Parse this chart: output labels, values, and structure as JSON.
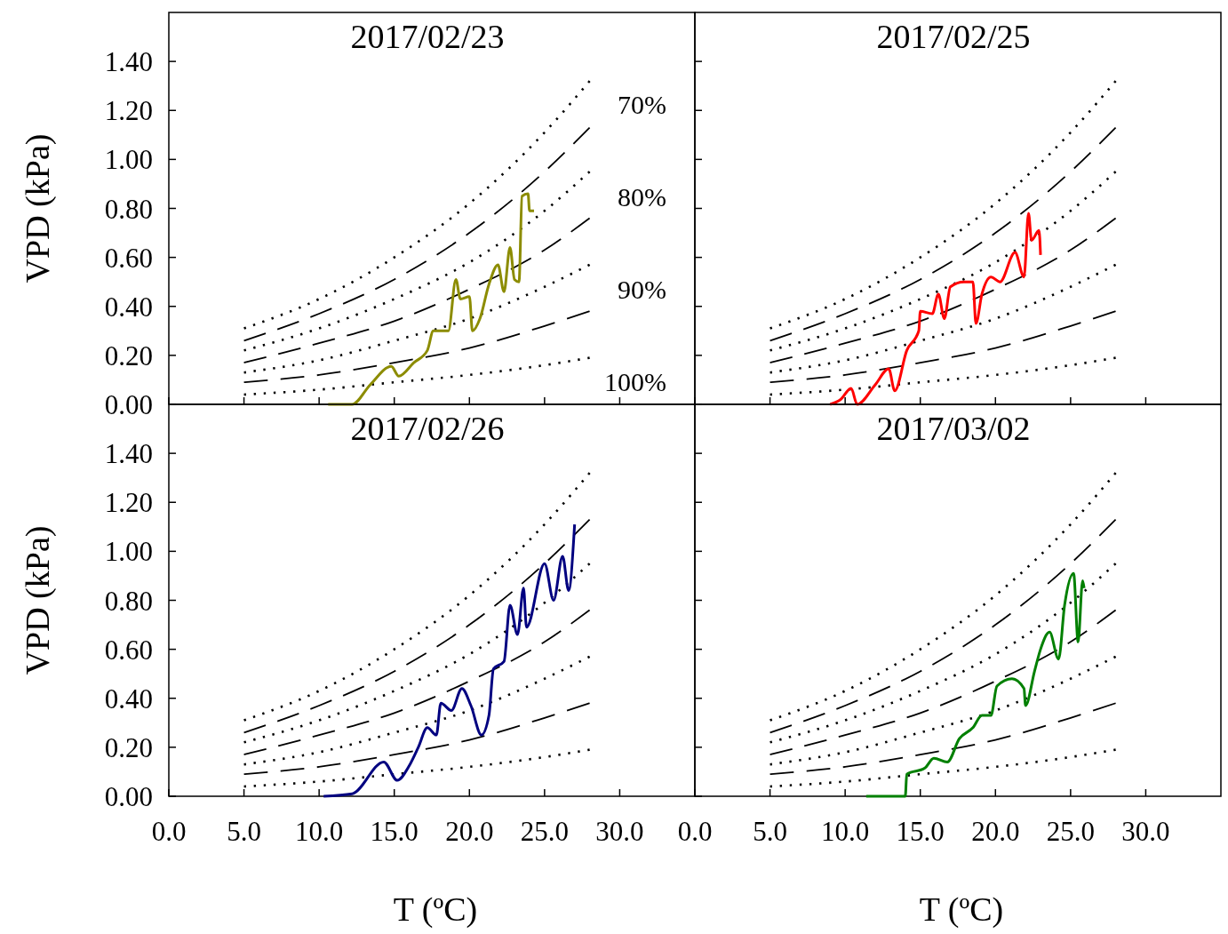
{
  "chart_data": [
    {
      "type": "line",
      "title": "2017/02/23",
      "ylabel": "VPD (kPa)",
      "xlim": [
        0,
        35
      ],
      "ylim": [
        0,
        1.6
      ],
      "tick_labels": "y",
      "xticks": [
        {
          "value": 0,
          "label": null
        },
        {
          "value": 5,
          "label": null
        },
        {
          "value": 10,
          "label": null
        },
        {
          "value": 15,
          "label": null
        },
        {
          "value": 20,
          "label": null
        },
        {
          "value": 25,
          "label": null
        },
        {
          "value": 30,
          "label": null
        }
      ],
      "yticks": [
        {
          "value": 0,
          "label": "0.00"
        },
        {
          "value": 0.2,
          "label": "0.20"
        },
        {
          "value": 0.4,
          "label": "0.40"
        },
        {
          "value": 0.6,
          "label": "0.60"
        },
        {
          "value": 0.8,
          "label": "0.80"
        },
        {
          "value": 1,
          "label": "1.00"
        },
        {
          "value": 1.2,
          "label": "1.20"
        },
        {
          "value": 1.4,
          "label": "1.40"
        }
      ],
      "annotations": [
        "70%",
        "80%",
        "90%",
        "100%"
      ],
      "series": [
        {
          "color": "#000000",
          "line_style": "dotted",
          "x": [
            5,
            10,
            15,
            20,
            25,
            28
          ],
          "values": [
            0.31,
            0.43,
            0.6,
            0.82,
            1.11,
            1.32
          ]
        },
        {
          "color": "#000000",
          "line_style": "dashed",
          "x": [
            5,
            10,
            15,
            20,
            25,
            28
          ],
          "values": [
            0.26,
            0.37,
            0.51,
            0.7,
            0.95,
            1.13
          ]
        },
        {
          "color": "#000000",
          "line_style": "dotted",
          "x": [
            5,
            10,
            15,
            20,
            25,
            28
          ],
          "values": [
            0.22,
            0.31,
            0.43,
            0.58,
            0.79,
            0.95
          ]
        },
        {
          "color": "#000000",
          "line_style": "dashed",
          "x": [
            5,
            10,
            15,
            20,
            25,
            28
          ],
          "values": [
            0.17,
            0.25,
            0.34,
            0.47,
            0.63,
            0.76
          ]
        },
        {
          "color": "#000000",
          "line_style": "dotted",
          "x": [
            5,
            10,
            15,
            20,
            25,
            28
          ],
          "values": [
            0.13,
            0.18,
            0.26,
            0.35,
            0.48,
            0.57
          ]
        },
        {
          "color": "#000000",
          "line_style": "dashed",
          "x": [
            5,
            10,
            15,
            20,
            25,
            28
          ],
          "values": [
            0.09,
            0.12,
            0.17,
            0.23,
            0.32,
            0.38
          ]
        },
        {
          "color": "#000000",
          "line_style": "dotted",
          "x": [
            5,
            10,
            15,
            20,
            25,
            28
          ],
          "values": [
            0.04,
            0.06,
            0.09,
            0.12,
            0.16,
            0.19
          ]
        },
        {
          "color": "#8c8c00",
          "x": [
            10.6,
            12.2,
            13.4,
            14.8,
            15.3,
            16.3,
            17.2,
            17.6,
            18.6,
            19.1,
            19.4,
            20.0,
            20.2,
            20.7,
            21.3,
            21.9,
            22.3,
            22.7,
            23.0,
            23.3,
            23.5,
            23.9,
            24.0,
            24.3
          ],
          "values": [
            0,
            0,
            0.08,
            0.155,
            0.115,
            0.17,
            0.22,
            0.3,
            0.3,
            0.51,
            0.43,
            0.44,
            0.3,
            0.35,
            0.49,
            0.57,
            0.46,
            0.64,
            0.51,
            0.5,
            0.85,
            0.86,
            0.79,
            0.79
          ]
        }
      ]
    },
    {
      "type": "line",
      "title": "2017/02/25",
      "xlim": [
        0,
        35
      ],
      "ylim": [
        0,
        1.6
      ],
      "tick_labels": false,
      "xticks": [
        {
          "value": 0,
          "label": null
        },
        {
          "value": 5,
          "label": null
        },
        {
          "value": 10,
          "label": null
        },
        {
          "value": 15,
          "label": null
        },
        {
          "value": 20,
          "label": null
        },
        {
          "value": 25,
          "label": null
        },
        {
          "value": 30,
          "label": null
        }
      ],
      "yticks": [
        {
          "value": 0,
          "label": null
        },
        {
          "value": 0.2,
          "label": null
        },
        {
          "value": 0.4,
          "label": null
        },
        {
          "value": 0.6,
          "label": null
        },
        {
          "value": 0.8,
          "label": null
        },
        {
          "value": 1,
          "label": null
        },
        {
          "value": 1.2,
          "label": null
        },
        {
          "value": 1.4,
          "label": null
        }
      ],
      "series": [
        {
          "color": "#000000",
          "line_style": "dotted",
          "x": [
            5,
            10,
            15,
            20,
            25,
            28
          ],
          "values": [
            0.31,
            0.43,
            0.6,
            0.82,
            1.11,
            1.32
          ]
        },
        {
          "color": "#000000",
          "line_style": "dashed",
          "x": [
            5,
            10,
            15,
            20,
            25,
            28
          ],
          "values": [
            0.26,
            0.37,
            0.51,
            0.7,
            0.95,
            1.13
          ]
        },
        {
          "color": "#000000",
          "line_style": "dotted",
          "x": [
            5,
            10,
            15,
            20,
            25,
            28
          ],
          "values": [
            0.22,
            0.31,
            0.43,
            0.58,
            0.79,
            0.95
          ]
        },
        {
          "color": "#000000",
          "line_style": "dashed",
          "x": [
            5,
            10,
            15,
            20,
            25,
            28
          ],
          "values": [
            0.17,
            0.25,
            0.34,
            0.47,
            0.63,
            0.76
          ]
        },
        {
          "color": "#000000",
          "line_style": "dotted",
          "x": [
            5,
            10,
            15,
            20,
            25,
            28
          ],
          "values": [
            0.13,
            0.18,
            0.26,
            0.35,
            0.48,
            0.57
          ]
        },
        {
          "color": "#000000",
          "line_style": "dashed",
          "x": [
            5,
            10,
            15,
            20,
            25,
            28
          ],
          "values": [
            0.09,
            0.12,
            0.17,
            0.23,
            0.32,
            0.38
          ]
        },
        {
          "color": "#000000",
          "line_style": "dotted",
          "x": [
            5,
            10,
            15,
            20,
            25,
            28
          ],
          "values": [
            0.04,
            0.06,
            0.09,
            0.12,
            0.16,
            0.19
          ]
        },
        {
          "color": "#ff0000",
          "x": [
            9.0,
            9.7,
            10.4,
            10.8,
            12.0,
            12.9,
            13.3,
            14.1,
            14.9,
            15.0,
            15.8,
            16.2,
            16.6,
            17.0,
            17.9,
            18.5,
            18.7,
            19.1,
            19.7,
            20.3,
            21.3,
            21.9,
            22.2,
            22.4,
            22.9,
            23.0
          ],
          "values": [
            0,
            0.02,
            0.065,
            0,
            0.08,
            0.145,
            0.055,
            0.22,
            0.3,
            0.38,
            0.37,
            0.45,
            0.35,
            0.48,
            0.5,
            0.5,
            0.33,
            0.45,
            0.52,
            0.5,
            0.62,
            0.52,
            0.78,
            0.67,
            0.71,
            0.61
          ]
        }
      ]
    },
    {
      "type": "line",
      "title": "2017/02/26",
      "xlabel": "T (ºC)",
      "ylabel": "VPD (kPa)",
      "xlim": [
        0,
        35
      ],
      "ylim": [
        0,
        1.6
      ],
      "xticks": [
        {
          "value": 0,
          "label": "0.0"
        },
        {
          "value": 5,
          "label": "5.0"
        },
        {
          "value": 10,
          "label": "10.0"
        },
        {
          "value": 15,
          "label": "15.0"
        },
        {
          "value": 20,
          "label": "20.0"
        },
        {
          "value": 25,
          "label": "25.0"
        },
        {
          "value": 30,
          "label": "30.0"
        }
      ],
      "yticks": [
        {
          "value": 0,
          "label": "0.00"
        },
        {
          "value": 0.2,
          "label": "0.20"
        },
        {
          "value": 0.4,
          "label": "0.40"
        },
        {
          "value": 0.6,
          "label": "0.60"
        },
        {
          "value": 0.8,
          "label": "0.80"
        },
        {
          "value": 1,
          "label": "1.00"
        },
        {
          "value": 1.2,
          "label": "1.20"
        },
        {
          "value": 1.4,
          "label": "1.40"
        }
      ],
      "series": [
        {
          "color": "#000000",
          "line_style": "dotted",
          "x": [
            5,
            10,
            15,
            20,
            25,
            28
          ],
          "values": [
            0.31,
            0.43,
            0.6,
            0.82,
            1.11,
            1.32
          ]
        },
        {
          "color": "#000000",
          "line_style": "dashed",
          "x": [
            5,
            10,
            15,
            20,
            25,
            28
          ],
          "values": [
            0.26,
            0.37,
            0.51,
            0.7,
            0.95,
            1.13
          ]
        },
        {
          "color": "#000000",
          "line_style": "dotted",
          "x": [
            5,
            10,
            15,
            20,
            25,
            28
          ],
          "values": [
            0.22,
            0.31,
            0.43,
            0.58,
            0.79,
            0.95
          ]
        },
        {
          "color": "#000000",
          "line_style": "dashed",
          "x": [
            5,
            10,
            15,
            20,
            25,
            28
          ],
          "values": [
            0.17,
            0.25,
            0.34,
            0.47,
            0.63,
            0.76
          ]
        },
        {
          "color": "#000000",
          "line_style": "dotted",
          "x": [
            5,
            10,
            15,
            20,
            25,
            28
          ],
          "values": [
            0.13,
            0.18,
            0.26,
            0.35,
            0.48,
            0.57
          ]
        },
        {
          "color": "#000000",
          "line_style": "dashed",
          "x": [
            5,
            10,
            15,
            20,
            25,
            28
          ],
          "values": [
            0.09,
            0.12,
            0.17,
            0.23,
            0.32,
            0.38
          ]
        },
        {
          "color": "#000000",
          "line_style": "dotted",
          "x": [
            5,
            10,
            15,
            20,
            25,
            28
          ],
          "values": [
            0.04,
            0.06,
            0.09,
            0.12,
            0.16,
            0.19
          ]
        },
        {
          "color": "#000080",
          "x": [
            10.3,
            12.2,
            14.3,
            15.2,
            16.0,
            16.6,
            17.2,
            17.8,
            18.1,
            18.8,
            19.5,
            20.1,
            20.8,
            21.3,
            21.6,
            22.3,
            22.7,
            23.2,
            23.6,
            23.8,
            25.0,
            25.6,
            26.2,
            26.6,
            27.0
          ],
          "values": [
            0,
            0.01,
            0.14,
            0.065,
            0.125,
            0.2,
            0.28,
            0.25,
            0.38,
            0.35,
            0.44,
            0.37,
            0.25,
            0.33,
            0.52,
            0.55,
            0.78,
            0.66,
            0.85,
            0.69,
            0.95,
            0.8,
            0.98,
            0.84,
            1.11
          ]
        }
      ]
    },
    {
      "type": "line",
      "title": "2017/03/02",
      "xlabel": "T (ºC)",
      "xlim": [
        0,
        35
      ],
      "ylim": [
        0,
        1.6
      ],
      "tick_labels": "x",
      "xticks": [
        {
          "value": 0,
          "label": "0.0"
        },
        {
          "value": 5,
          "label": "5.0"
        },
        {
          "value": 10,
          "label": "10.0"
        },
        {
          "value": 15,
          "label": "15.0"
        },
        {
          "value": 20,
          "label": "20.0"
        },
        {
          "value": 25,
          "label": "25.0"
        },
        {
          "value": 30,
          "label": "30.0"
        }
      ],
      "yticks": [
        {
          "value": 0,
          "label": null
        },
        {
          "value": 0.2,
          "label": null
        },
        {
          "value": 0.4,
          "label": null
        },
        {
          "value": 0.6,
          "label": null
        },
        {
          "value": 0.8,
          "label": null
        },
        {
          "value": 1,
          "label": null
        },
        {
          "value": 1.2,
          "label": null
        },
        {
          "value": 1.4,
          "label": null
        }
      ],
      "series": [
        {
          "color": "#000000",
          "line_style": "dotted",
          "x": [
            5,
            10,
            15,
            20,
            25,
            28
          ],
          "values": [
            0.31,
            0.43,
            0.6,
            0.82,
            1.11,
            1.32
          ]
        },
        {
          "color": "#000000",
          "line_style": "dashed",
          "x": [
            5,
            10,
            15,
            20,
            25,
            28
          ],
          "values": [
            0.26,
            0.37,
            0.51,
            0.7,
            0.95,
            1.13
          ]
        },
        {
          "color": "#000000",
          "line_style": "dotted",
          "x": [
            5,
            10,
            15,
            20,
            25,
            28
          ],
          "values": [
            0.22,
            0.31,
            0.43,
            0.58,
            0.79,
            0.95
          ]
        },
        {
          "color": "#000000",
          "line_style": "dashed",
          "x": [
            5,
            10,
            15,
            20,
            25,
            28
          ],
          "values": [
            0.17,
            0.25,
            0.34,
            0.47,
            0.63,
            0.76
          ]
        },
        {
          "color": "#000000",
          "line_style": "dotted",
          "x": [
            5,
            10,
            15,
            20,
            25,
            28
          ],
          "values": [
            0.13,
            0.18,
            0.26,
            0.35,
            0.48,
            0.57
          ]
        },
        {
          "color": "#000000",
          "line_style": "dashed",
          "x": [
            5,
            10,
            15,
            20,
            25,
            28
          ],
          "values": [
            0.09,
            0.12,
            0.17,
            0.23,
            0.32,
            0.38
          ]
        },
        {
          "color": "#000000",
          "line_style": "dotted",
          "x": [
            5,
            10,
            15,
            20,
            25,
            28
          ],
          "values": [
            0.04,
            0.06,
            0.09,
            0.12,
            0.16,
            0.19
          ]
        },
        {
          "color": "#008000",
          "x": [
            11.4,
            14.0,
            14.1,
            15.3,
            15.9,
            16.8,
            17.6,
            18.5,
            19.1,
            19.7,
            20.1,
            21.1,
            21.9,
            22.0,
            22.6,
            23.0,
            23.6,
            24.2,
            24.6,
            25.2,
            25.5,
            25.8,
            25.9
          ],
          "values": [
            0,
            0,
            0.09,
            0.115,
            0.155,
            0.14,
            0.235,
            0.28,
            0.33,
            0.33,
            0.45,
            0.48,
            0.44,
            0.37,
            0.51,
            0.6,
            0.67,
            0.56,
            0.78,
            0.91,
            0.63,
            0.88,
            0.85
          ]
        }
      ]
    }
  ]
}
